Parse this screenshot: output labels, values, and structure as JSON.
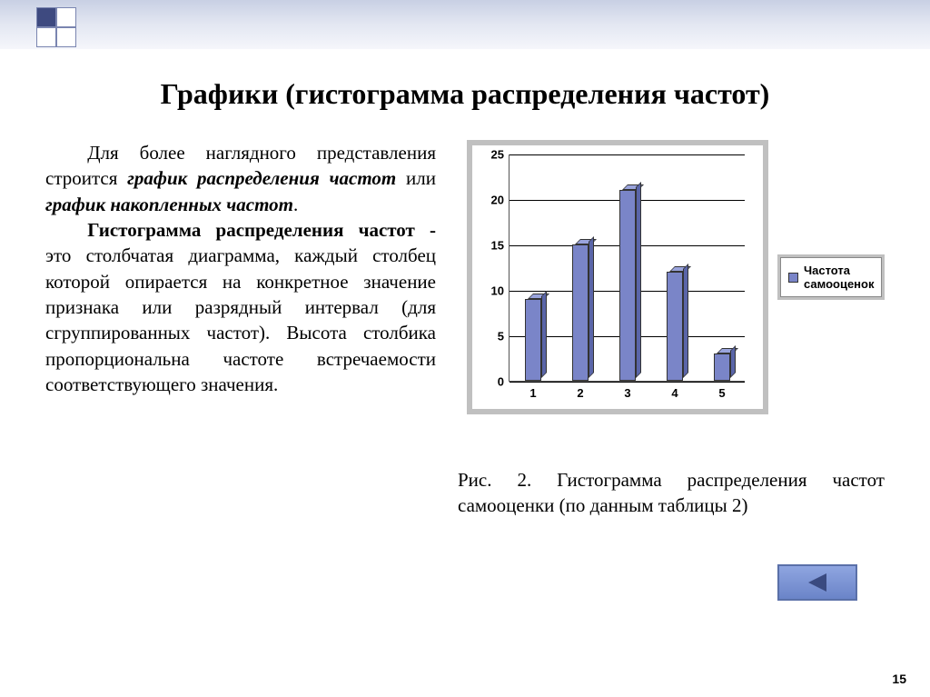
{
  "title": "Графики (гистограмма распределения частот)",
  "para1_lead": "Для более наглядного представления строится ",
  "para1_em1": "график распределения частот",
  "para1_mid": " или ",
  "para1_em2": "график накопленных частот",
  "para1_end": ".",
  "para2_lead": "Гистограмма распределения частот -",
  "para2_body": " это столбчатая диаграмма, каждый столбец которой опирается на конкретное значение признака или разрядный интервал (для сгруппированных частот). Высота столбика пропорциональна частоте встречаемости соответствующего значения.",
  "caption": "Рис. 2. Гистограмма распределения частот самооценки (по данным таблицы 2)",
  "page_number": "15",
  "chart": {
    "type": "bar",
    "categories": [
      "1",
      "2",
      "3",
      "4",
      "5"
    ],
    "values": [
      9,
      15,
      21,
      12,
      3
    ],
    "ylim": [
      0,
      25
    ],
    "ytick_step": 5,
    "bar_color": "#7a85c8",
    "bar_top_color": "#9aa4dc",
    "bar_side_color": "#5a65a8",
    "grid_color": "#000000",
    "background_color": "#ffffff",
    "panel_color": "#c0c0c0",
    "tick_fontsize": 13,
    "legend_label": "Частота самооценок",
    "legend_swatch_color": "#7a85c8"
  },
  "nav": {
    "button_bg": "#7f96d4",
    "button_border": "#5a70a8",
    "triangle_color": "#3a4a80"
  }
}
